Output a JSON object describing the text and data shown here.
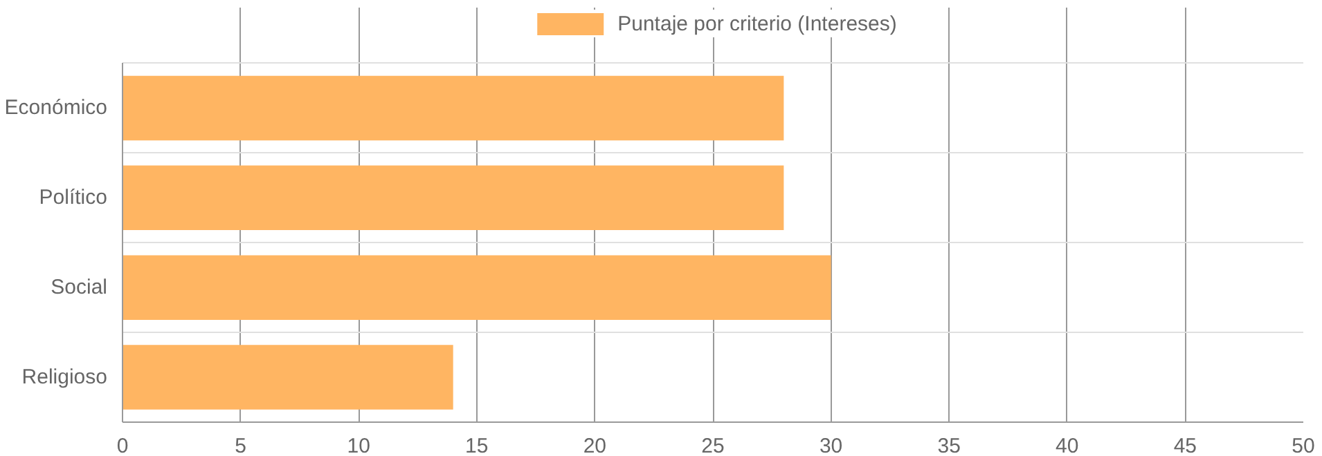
{
  "chart_data": {
    "type": "bar",
    "orientation": "horizontal",
    "categories": [
      "Económico",
      "Político",
      "Social",
      "Religioso"
    ],
    "series": [
      {
        "name": "Puntaje por criterio (Intereses)",
        "color": "#ffb562",
        "values": [
          28,
          28,
          30,
          14
        ]
      }
    ],
    "xlim": [
      0,
      50
    ],
    "xticks": [
      0,
      5,
      10,
      15,
      20,
      25,
      30,
      35,
      40,
      45,
      50
    ],
    "grid": true,
    "legend": "top"
  }
}
